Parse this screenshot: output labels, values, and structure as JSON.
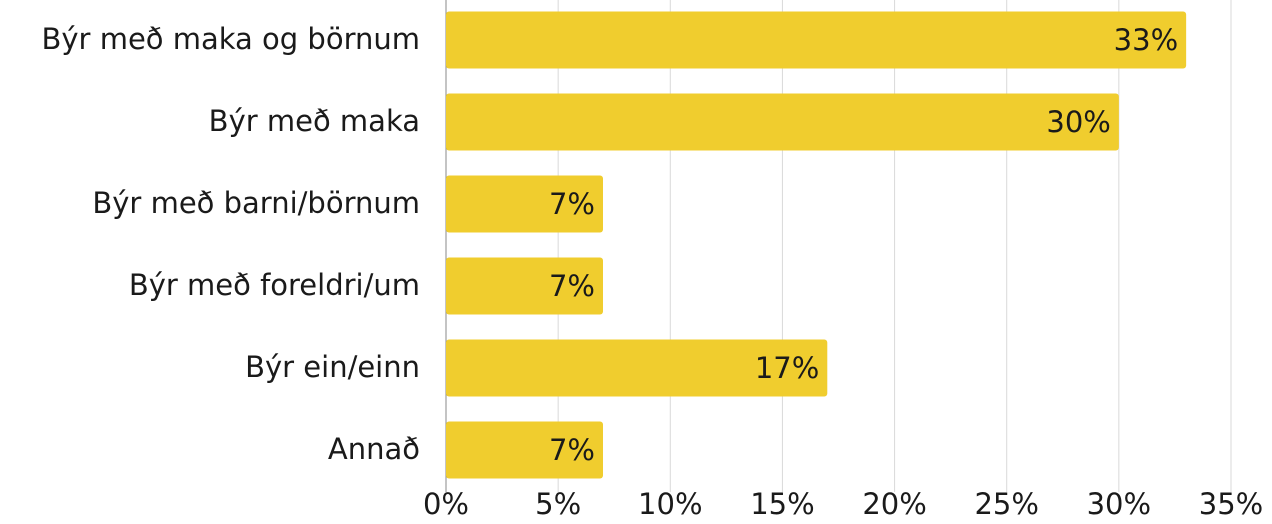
{
  "chart_data": {
    "type": "bar",
    "orientation": "horizontal",
    "categories": [
      "Býr með maka og börnum",
      "Býr með maka",
      "Býr með barni/börnum",
      "Býr með foreldri/um",
      "Býr ein/einn",
      "Annað"
    ],
    "values": [
      33,
      30,
      7,
      7,
      17,
      7
    ],
    "value_labels": [
      "33%",
      "30%",
      "7%",
      "7%",
      "17%",
      "7%"
    ],
    "color": "#f0cd2e",
    "xlim": [
      0,
      35
    ],
    "xticks": [
      {
        "value": 0,
        "label": "0%"
      },
      {
        "value": 5,
        "label": "5%"
      },
      {
        "value": 10,
        "label": "10%"
      },
      {
        "value": 15,
        "label": "15%"
      },
      {
        "value": 20,
        "label": "20%"
      },
      {
        "value": 25,
        "label": "25%"
      },
      {
        "value": 30,
        "label": "30%"
      },
      {
        "value": 35,
        "label": "35%"
      }
    ],
    "grid": true
  }
}
